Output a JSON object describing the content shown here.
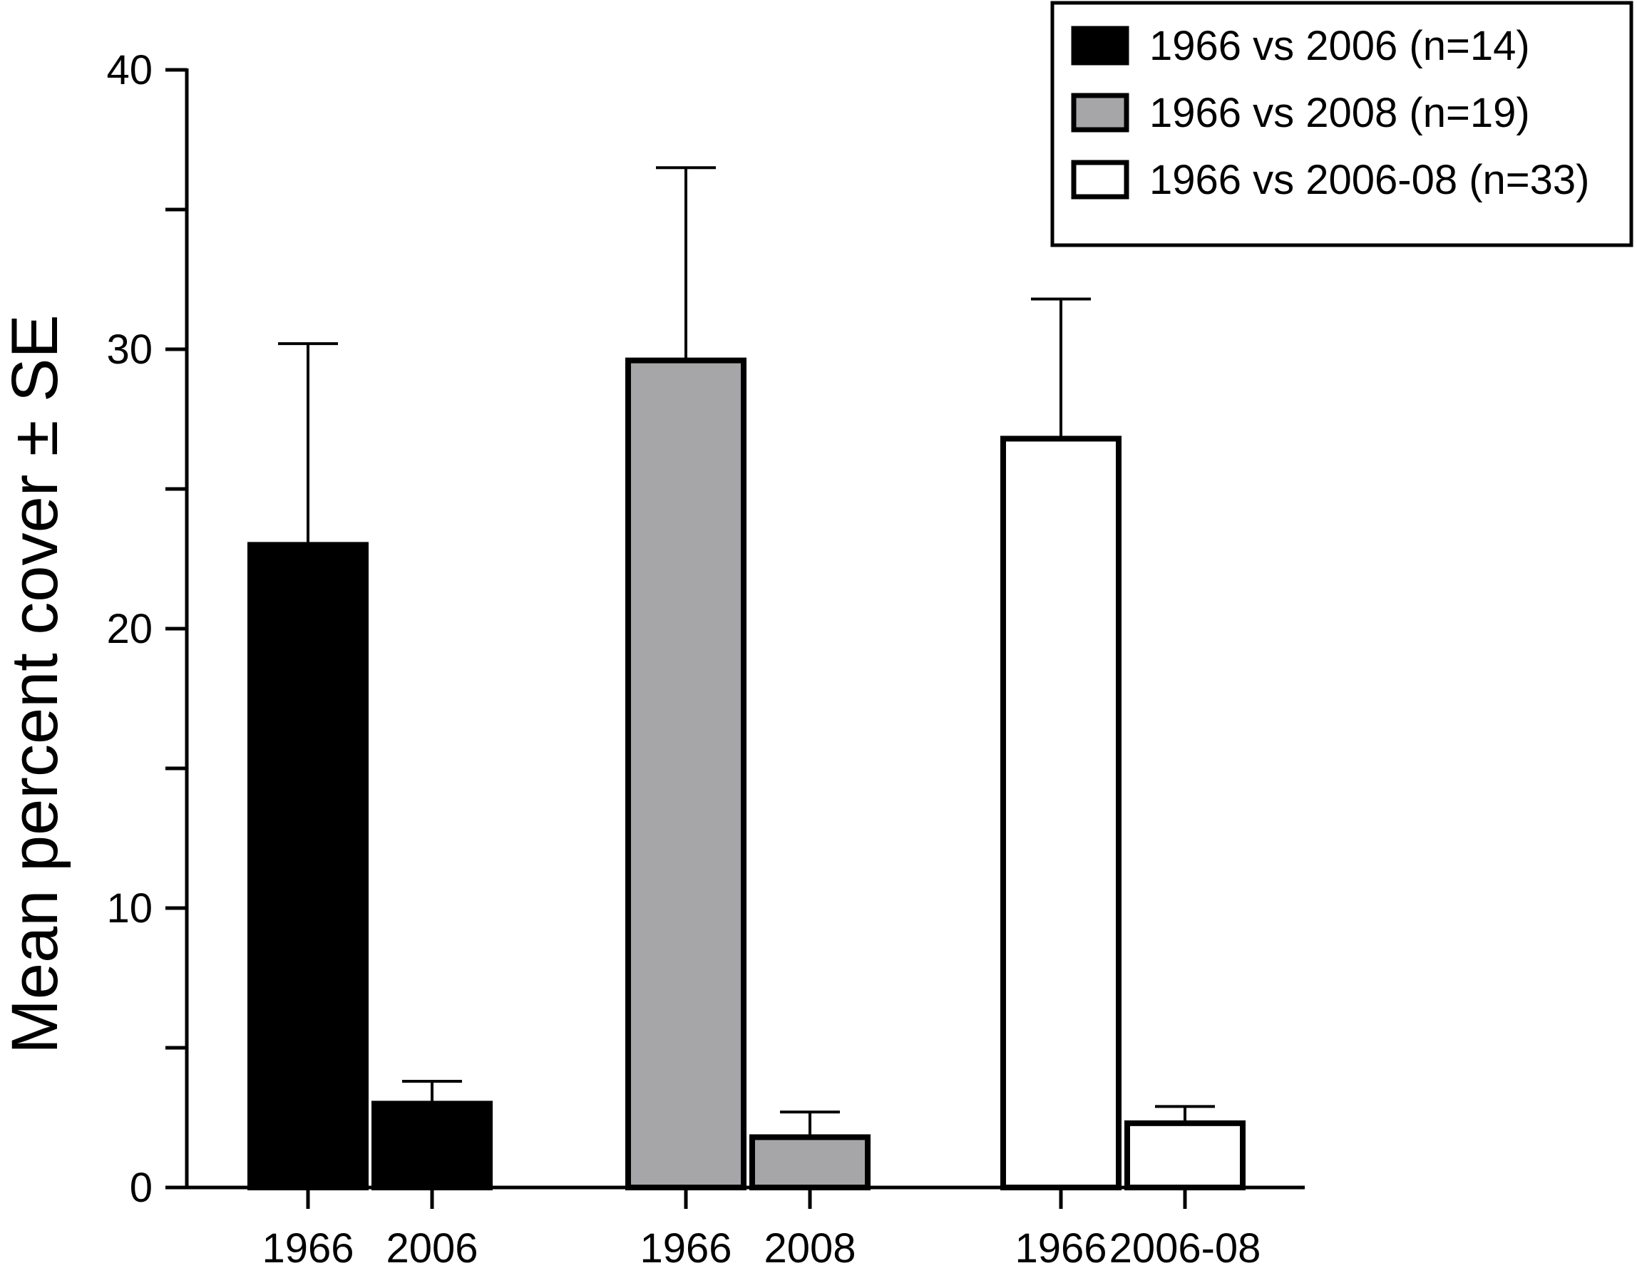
{
  "chart_data": {
    "type": "bar",
    "ylabel": "Mean percent cover ± SE",
    "xlabel": "",
    "ylim": [
      0,
      40
    ],
    "yticks": [
      0,
      10,
      20,
      30,
      40
    ],
    "grid": false,
    "legend_position": "top-right",
    "groups": [
      {
        "series": "1966 vs 2006 (n=14)",
        "fill": "#000000",
        "bars": [
          {
            "category": "1966",
            "value": 23.0,
            "se": 7.2
          },
          {
            "category": "2006",
            "value": 3.0,
            "se": 0.8
          }
        ]
      },
      {
        "series": "1966 vs 2008 (n=19)",
        "fill": "#a6a6a9",
        "bars": [
          {
            "category": "1966",
            "value": 29.6,
            "se": 6.9
          },
          {
            "category": "2008",
            "value": 1.8,
            "se": 0.9
          }
        ]
      },
      {
        "series": "1966 vs 2006-08 (n=33)",
        "fill": "#ffffff",
        "bars": [
          {
            "category": "1966",
            "value": 26.8,
            "se": 5.0
          },
          {
            "category": "2006-08",
            "value": 2.3,
            "se": 0.6
          }
        ]
      }
    ],
    "legend": [
      {
        "label": "1966 vs 2006 (n=14)",
        "fill": "#000000"
      },
      {
        "label": "1966 vs 2008 (n=19)",
        "fill": "#a6a6a9"
      },
      {
        "label": "1966 vs 2006-08 (n=33)",
        "fill": "#ffffff"
      }
    ]
  }
}
